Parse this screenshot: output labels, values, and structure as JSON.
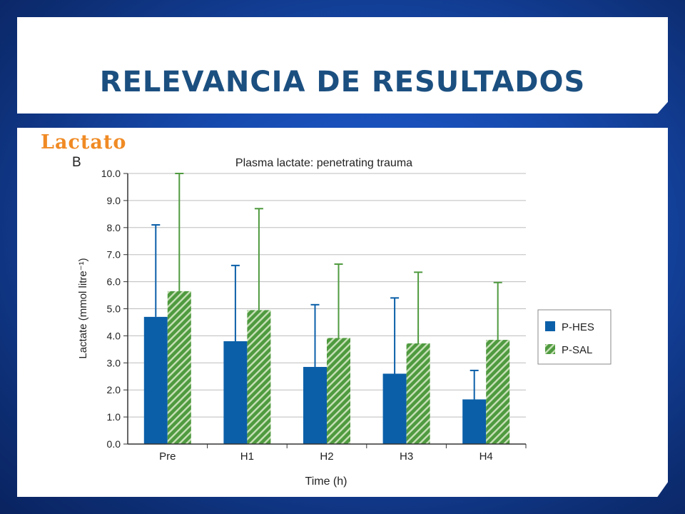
{
  "slide": {
    "title": "RELEVANCIA DE RESULTADOS",
    "section_label": "Lactato"
  },
  "chart_data": {
    "type": "bar",
    "panel_letter": "B",
    "title": "Plasma lactate: penetrating trauma",
    "xlabel": "Time (h)",
    "ylabel": "Lactate (mmol litre⁻¹)",
    "ylim": [
      0,
      10
    ],
    "yticks": [
      "0.0",
      "1.0",
      "2.0",
      "3.0",
      "4.0",
      "5.0",
      "6.0",
      "7.0",
      "8.0",
      "9.0",
      "10.0"
    ],
    "grid": true,
    "legend_position": "right",
    "categories": [
      "Pre",
      "H1",
      "H2",
      "H3",
      "H4"
    ],
    "series": [
      {
        "name": "P-HES",
        "color": "#0b5fa8",
        "pattern": "solid",
        "values": [
          4.7,
          3.8,
          2.85,
          2.6,
          1.65
        ],
        "error_upper": [
          8.1,
          6.6,
          5.15,
          5.4,
          2.72
        ]
      },
      {
        "name": "P-SAL",
        "color": "#4f9a3f",
        "pattern": "hatched",
        "values": [
          5.65,
          4.95,
          3.92,
          3.72,
          3.85
        ],
        "error_upper": [
          10.0,
          8.7,
          6.65,
          6.35,
          5.97
        ]
      }
    ]
  }
}
